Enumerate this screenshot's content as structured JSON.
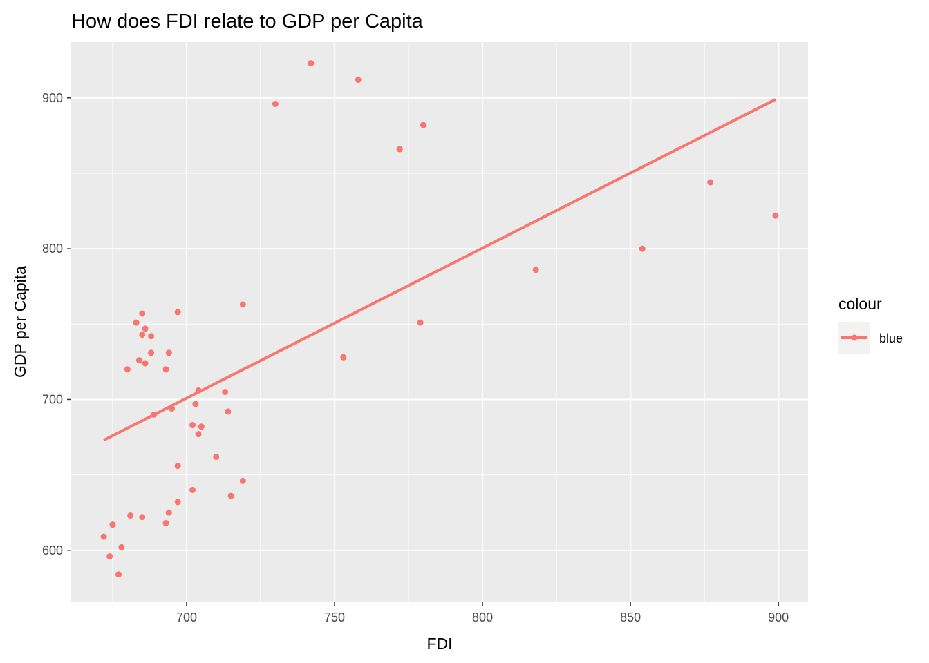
{
  "chart_data": {
    "type": "scatter",
    "title": "How does FDI relate to GDP per Capita",
    "xlabel": "FDI",
    "ylabel": "GDP per Capita",
    "xlim": [
      661,
      910
    ],
    "ylim": [
      566,
      937
    ],
    "x_ticks": [
      700,
      750,
      800,
      850,
      900
    ],
    "y_ticks": [
      600,
      700,
      800,
      900
    ],
    "grid": true,
    "color": "#F8766D",
    "legend": {
      "title": "colour",
      "entries": [
        "blue"
      ],
      "position": "right"
    },
    "trend_line": {
      "x": [
        672,
        899
      ],
      "y": [
        673,
        899
      ]
    },
    "series": [
      {
        "name": "blue",
        "points": [
          {
            "x": 742,
            "y": 923
          },
          {
            "x": 758,
            "y": 912
          },
          {
            "x": 730,
            "y": 896
          },
          {
            "x": 780,
            "y": 882
          },
          {
            "x": 772,
            "y": 866
          },
          {
            "x": 877,
            "y": 844
          },
          {
            "x": 899,
            "y": 822
          },
          {
            "x": 854,
            "y": 800
          },
          {
            "x": 818,
            "y": 786
          },
          {
            "x": 719,
            "y": 763
          },
          {
            "x": 697,
            "y": 758
          },
          {
            "x": 685,
            "y": 757
          },
          {
            "x": 683,
            "y": 751
          },
          {
            "x": 779,
            "y": 751
          },
          {
            "x": 686,
            "y": 747
          },
          {
            "x": 685,
            "y": 743
          },
          {
            "x": 688,
            "y": 742
          },
          {
            "x": 694,
            "y": 731
          },
          {
            "x": 688,
            "y": 731
          },
          {
            "x": 753,
            "y": 728
          },
          {
            "x": 684,
            "y": 726
          },
          {
            "x": 686,
            "y": 724
          },
          {
            "x": 680,
            "y": 720
          },
          {
            "x": 693,
            "y": 720
          },
          {
            "x": 704,
            "y": 706
          },
          {
            "x": 713,
            "y": 705
          },
          {
            "x": 703,
            "y": 697
          },
          {
            "x": 695,
            "y": 694
          },
          {
            "x": 714,
            "y": 692
          },
          {
            "x": 689,
            "y": 690
          },
          {
            "x": 702,
            "y": 683
          },
          {
            "x": 705,
            "y": 682
          },
          {
            "x": 704,
            "y": 677
          },
          {
            "x": 710,
            "y": 662
          },
          {
            "x": 697,
            "y": 656
          },
          {
            "x": 719,
            "y": 646
          },
          {
            "x": 702,
            "y": 640
          },
          {
            "x": 715,
            "y": 636
          },
          {
            "x": 697,
            "y": 632
          },
          {
            "x": 694,
            "y": 625
          },
          {
            "x": 681,
            "y": 623
          },
          {
            "x": 685,
            "y": 622
          },
          {
            "x": 693,
            "y": 618
          },
          {
            "x": 675,
            "y": 617
          },
          {
            "x": 672,
            "y": 609
          },
          {
            "x": 678,
            "y": 602
          },
          {
            "x": 674,
            "y": 596
          },
          {
            "x": 677,
            "y": 584
          }
        ]
      }
    ]
  }
}
